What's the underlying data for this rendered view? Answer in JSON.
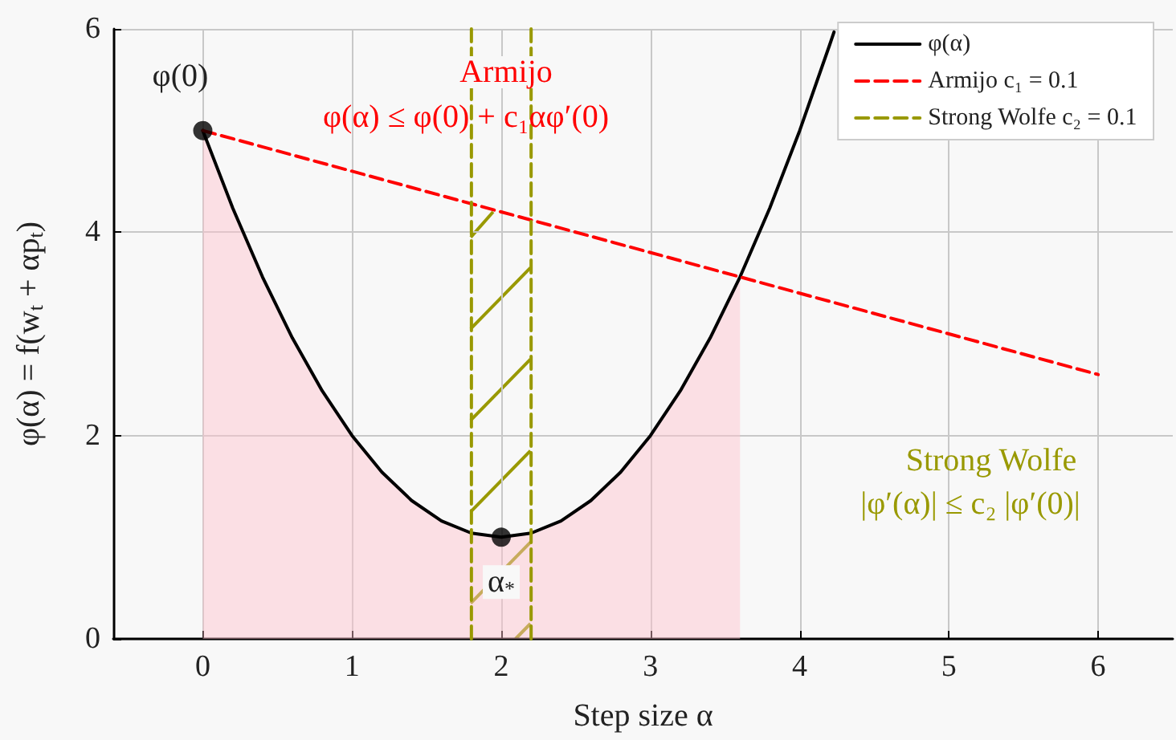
{
  "chart_data": {
    "type": "line",
    "xlabel": "Step size α",
    "ylabel": "φ(α) = f(w$_{t}$ + αp$_{t}$)",
    "xlim": [
      -0.6,
      6.5
    ],
    "xticks": [
      0,
      1,
      2,
      3,
      4,
      5,
      6
    ],
    "ylim": [
      0,
      6
    ],
    "yticks": [
      0,
      2,
      4,
      6
    ],
    "grid": true,
    "legend": "top right",
    "series": [
      {
        "type": "area",
        "color": "#ffc0cb",
        "marker": "none",
        "x": [
          0,
          0.2,
          0.4,
          0.6,
          0.8,
          1,
          1.2,
          1.4,
          1.6,
          1.8,
          2,
          2.2,
          2.4,
          2.6,
          2.8,
          3,
          3.2,
          3.4,
          3.6
        ],
        "values": [
          5,
          4.24,
          3.56,
          2.96,
          2.44,
          2,
          1.64,
          1.36,
          1.16,
          1.04,
          1,
          1.04,
          1.16,
          1.36,
          1.64,
          2,
          2.44,
          2.96,
          3.56
        ]
      },
      {
        "name": "φ(α)",
        "color": "#000000",
        "marker": "none",
        "line_style": "solid",
        "x": [
          0,
          0.2,
          0.4,
          0.6,
          0.8,
          1,
          1.2,
          1.4,
          1.6,
          1.8,
          2,
          2.2,
          2.4,
          2.6,
          2.8,
          3,
          3.2,
          3.4,
          3.6,
          3.8,
          4,
          4.2,
          4.23
        ],
        "values": [
          5,
          4.24,
          3.56,
          2.96,
          2.44,
          2,
          1.64,
          1.36,
          1.16,
          1.04,
          1,
          1.04,
          1.16,
          1.36,
          1.64,
          2,
          2.44,
          2.96,
          3.56,
          4.24,
          5,
          5.84,
          5.97
        ]
      },
      {
        "name": "Armijo c₁ = 0.1",
        "color": "#ff0000",
        "marker": "none",
        "line_style": "dashed",
        "x": [
          0,
          6
        ],
        "values": [
          5,
          2.6
        ]
      },
      {
        "name": "Strong Wolfe c₂ = 0.1",
        "color": "#999900",
        "marker": "none",
        "line_style": "dashed",
        "x": [
          1.8,
          1.8,
          2.0,
          2.2,
          2.2
        ],
        "values": [
          0,
          6,
          null,
          6,
          0
        ]
      },
      {
        "type": "scatter",
        "color": "#000000",
        "marker": "circle",
        "x": [
          0,
          2
        ],
        "values": [
          5,
          1
        ]
      }
    ],
    "annotations": [
      {
        "text": "φ(0)",
        "x": 0,
        "y": 5
      },
      "Armijo",
      "φ(α) ≤ φ(0) + c₁αφ′(0)",
      {
        "text": "α$_{*}$",
        "x": 2,
        "y": 1
      },
      "Strong Wolfe",
      "|φ′(α)| ≤ c₂ |φ′(0)|"
    ]
  }
}
